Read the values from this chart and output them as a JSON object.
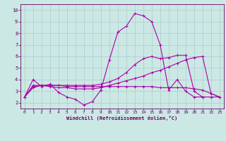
{
  "background_color": "#cce8e4",
  "grid_color": "#aacccc",
  "line_color": "#aa00aa",
  "marker": "+",
  "markersize": 3,
  "linewidth": 0.8,
  "xlabel": "Windchill (Refroidissement éolien,°C)",
  "xlim": [
    -0.5,
    23.5
  ],
  "ylim": [
    1.5,
    10.5
  ],
  "yticks": [
    2,
    3,
    4,
    5,
    6,
    7,
    8,
    9,
    10
  ],
  "xticks": [
    0,
    1,
    2,
    3,
    4,
    5,
    6,
    7,
    8,
    9,
    10,
    11,
    12,
    13,
    14,
    15,
    16,
    17,
    18,
    19,
    20,
    21,
    22,
    23
  ],
  "series1_x": [
    0,
    1,
    2,
    3,
    4,
    5,
    6,
    7,
    8,
    9,
    10,
    11,
    12,
    13,
    14,
    15,
    16,
    17,
    18,
    19,
    20,
    21
  ],
  "series1_y": [
    2.5,
    4.0,
    3.4,
    3.6,
    2.9,
    2.5,
    2.3,
    1.8,
    2.1,
    3.1,
    5.7,
    8.1,
    8.6,
    9.7,
    9.5,
    9.0,
    7.0,
    3.1,
    4.0,
    3.0,
    2.5,
    2.5
  ],
  "series2_x": [
    0,
    1,
    2,
    3,
    4,
    5,
    6,
    7,
    8,
    9,
    10,
    11,
    12,
    13,
    14,
    15,
    16,
    17,
    18,
    19,
    20,
    21,
    22,
    23
  ],
  "series2_y": [
    2.5,
    3.3,
    3.5,
    3.4,
    3.3,
    3.3,
    3.2,
    3.2,
    3.2,
    3.3,
    3.5,
    3.7,
    3.9,
    4.1,
    4.3,
    4.6,
    4.8,
    5.1,
    5.4,
    5.7,
    5.9,
    6.0,
    2.8,
    2.5
  ],
  "series3_x": [
    0,
    1,
    2,
    3,
    4,
    5,
    6,
    7,
    8,
    9,
    10,
    11,
    12,
    13,
    14,
    15,
    16,
    17,
    18,
    19,
    20,
    21,
    22,
    23
  ],
  "series3_y": [
    2.5,
    3.5,
    3.5,
    3.5,
    3.5,
    3.4,
    3.4,
    3.4,
    3.4,
    3.4,
    3.4,
    3.4,
    3.4,
    3.4,
    3.4,
    3.4,
    3.3,
    3.3,
    3.3,
    3.3,
    3.2,
    3.1,
    2.8,
    2.5
  ],
  "series4_x": [
    0,
    1,
    2,
    3,
    4,
    5,
    6,
    7,
    8,
    9,
    10,
    11,
    12,
    13,
    14,
    15,
    16,
    17,
    18,
    19,
    20,
    21,
    22,
    23
  ],
  "series4_y": [
    2.5,
    3.4,
    3.5,
    3.5,
    3.5,
    3.5,
    3.5,
    3.5,
    3.5,
    3.6,
    3.8,
    4.1,
    4.6,
    5.3,
    5.8,
    6.0,
    5.8,
    5.9,
    6.1,
    6.1,
    3.0,
    2.5,
    2.5,
    2.5
  ]
}
